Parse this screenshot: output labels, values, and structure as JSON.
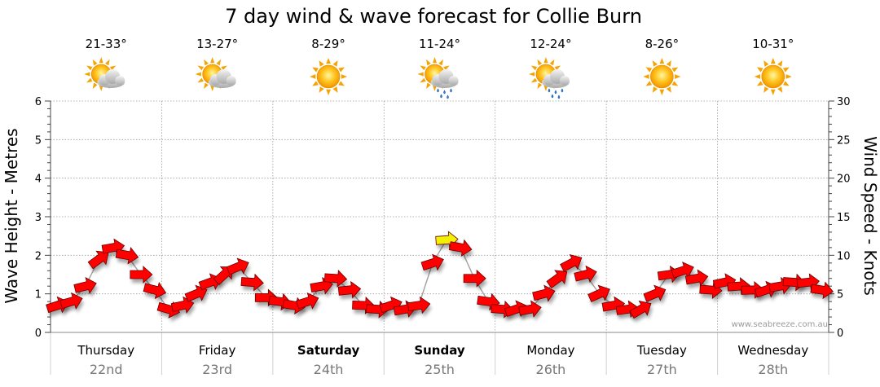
{
  "chart_data": {
    "type": "line",
    "title": "7 day wind & wave forecast for Collie Burn",
    "y_left": {
      "label": "Wave Height - Metres",
      "min": 0,
      "max": 6,
      "ticks": [
        0,
        1,
        2,
        3,
        4,
        5,
        6
      ]
    },
    "y_right": {
      "label": "Wind Speed - Knots",
      "min": 0,
      "max": 30,
      "ticks": [
        0,
        5,
        10,
        15,
        20,
        25,
        30
      ]
    },
    "grid": true,
    "days": [
      {
        "name": "Thursday",
        "date": "22nd",
        "temp": "21-33°",
        "weather": "partly-cloudy",
        "bold": false
      },
      {
        "name": "Friday",
        "date": "23rd",
        "temp": "13-27°",
        "weather": "partly-cloudy",
        "bold": false
      },
      {
        "name": "Saturday",
        "date": "24th",
        "temp": "8-29°",
        "weather": "sunny",
        "bold": true
      },
      {
        "name": "Sunday",
        "date": "25th",
        "temp": "11-24°",
        "weather": "showers",
        "bold": true
      },
      {
        "name": "Monday",
        "date": "26th",
        "temp": "12-24°",
        "weather": "showers",
        "bold": false
      },
      {
        "name": "Tuesday",
        "date": "27th",
        "temp": "8-26°",
        "weather": "sunny",
        "bold": false
      },
      {
        "name": "Wednesday",
        "date": "28th",
        "temp": "10-31°",
        "weather": "sunny",
        "bold": false
      }
    ],
    "series": [
      {
        "name": "Wind Speed - Knots",
        "hours": [
          0,
          3,
          6,
          9,
          12,
          15,
          18,
          21,
          24,
          27,
          30,
          33,
          36,
          39,
          42,
          45,
          48,
          51,
          54,
          57,
          60,
          63,
          66,
          69,
          72,
          75,
          78,
          81,
          84,
          87,
          90,
          93,
          96,
          99,
          102,
          105,
          108,
          111,
          114,
          117,
          120,
          123,
          126,
          129,
          132,
          135,
          138,
          141,
          144,
          147,
          150,
          153,
          156,
          159,
          162,
          165
        ],
        "values": [
          3.5,
          4,
          6,
          9.5,
          11,
          10,
          7.5,
          5.5,
          3,
          3.5,
          5,
          6.5,
          7.5,
          8.5,
          6.5,
          4.5,
          4,
          3.5,
          4,
          6,
          7,
          5.5,
          3.5,
          3,
          3.5,
          3,
          3.5,
          9,
          12,
          11,
          7,
          4,
          3,
          3,
          3,
          5,
          7,
          9,
          7.5,
          5,
          3.5,
          3,
          3,
          5,
          7.5,
          8,
          7,
          5.5,
          6.5,
          6,
          5.5,
          5.5,
          6,
          6.5,
          6.5,
          5.5
        ],
        "directions_deg": [
          270,
          260,
          250,
          240,
          270,
          290,
          300,
          310,
          300,
          280,
          250,
          240,
          230,
          250,
          280,
          300,
          300,
          290,
          270,
          270,
          280,
          290,
          290,
          280,
          270,
          270,
          260,
          270,
          280,
          290,
          300,
          300,
          280,
          270,
          270,
          250,
          240,
          240,
          250,
          260,
          270,
          260,
          250,
          250,
          260,
          270,
          270,
          280,
          280,
          280,
          270,
          270,
          270,
          280,
          290,
          300
        ]
      }
    ],
    "threshold_knots": 12,
    "threshold_color": "#f2f200",
    "wave_color": "#a0a0a0",
    "arrow_color": "#ff0000",
    "arrow_stroke": "#6a0000"
  },
  "watermark": "www.seabreeze.com.au"
}
